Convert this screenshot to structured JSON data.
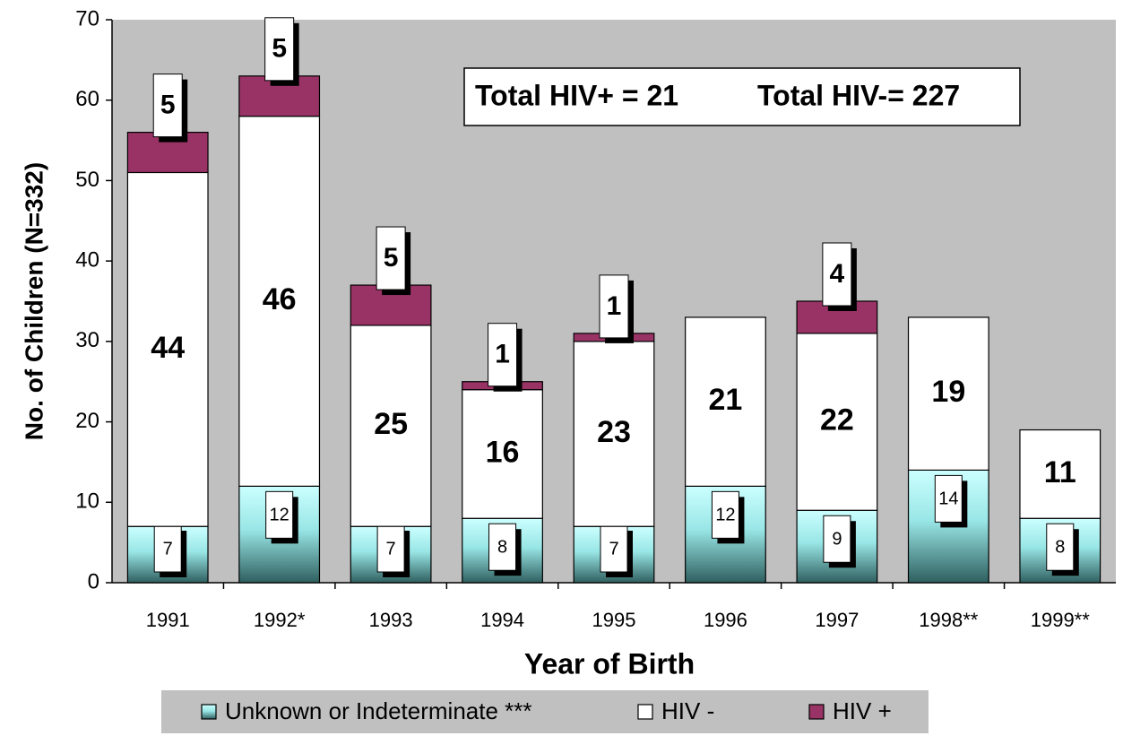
{
  "chart_data": {
    "type": "stacked_bar",
    "y_label": "No. of Children (N=332)",
    "x_label": "Year of Birth",
    "annotations": [
      "Total HIV+ = 21",
      "Total HIV-= 227"
    ],
    "categories": [
      "1991",
      "1992*",
      "1993",
      "1994",
      "1995",
      "1996",
      "1997",
      "1998**",
      "1999**"
    ],
    "series": [
      {
        "name": "Unknown or Indeterminate ***",
        "color": "#99ffff",
        "values": [
          7,
          12,
          7,
          8,
          7,
          12,
          9,
          14,
          8
        ]
      },
      {
        "name": "HIV -",
        "color": "#ffffff",
        "values": [
          44,
          46,
          25,
          16,
          23,
          21,
          22,
          19,
          11
        ]
      },
      {
        "name": "HIV +",
        "color": "#993366",
        "values": [
          5,
          5,
          5,
          1,
          1,
          null,
          4,
          null,
          null
        ]
      }
    ],
    "ylim": [
      0,
      70
    ],
    "yticks": [
      0,
      10,
      20,
      30,
      40,
      50,
      60,
      70
    ],
    "grid": false,
    "legend": "bottom"
  }
}
